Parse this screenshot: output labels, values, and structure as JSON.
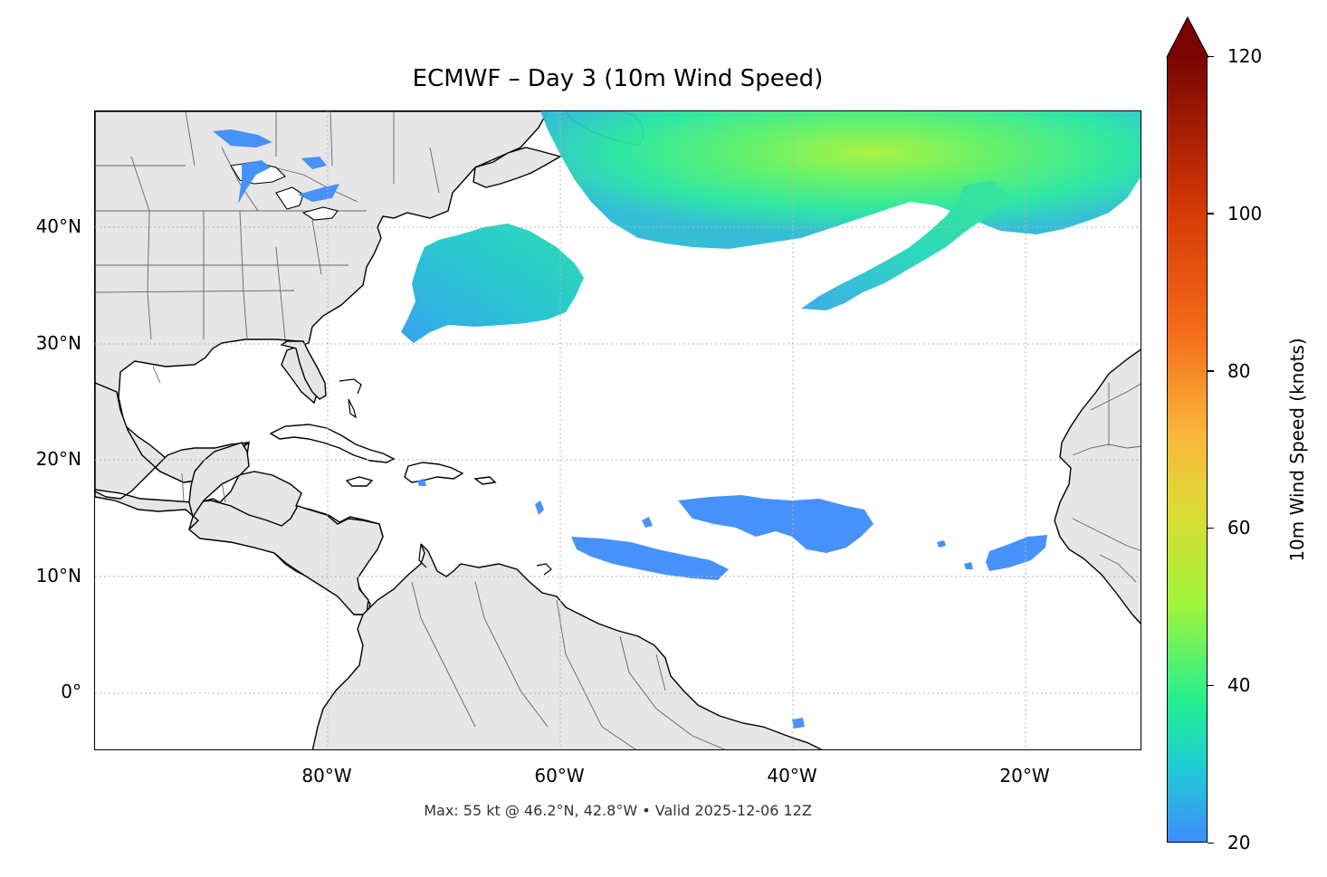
{
  "title": "ECMWF – Day 3 (10m Wind Speed)",
  "footer": "Max: 55 kt @ 46.2°N, 42.8°W • Valid 2025-12-06 12Z",
  "map": {
    "lon_range": [
      -100,
      -10
    ],
    "lat_range": [
      -5,
      50
    ],
    "land_color": "#e6e6e6",
    "coast_color": "#000000",
    "border_color": "#666666",
    "grid": true,
    "lat_ticks": [
      {
        "value": 40,
        "label": "40°N"
      },
      {
        "value": 30,
        "label": "30°N"
      },
      {
        "value": 20,
        "label": "20°N"
      },
      {
        "value": 10,
        "label": "10°N"
      },
      {
        "value": 0,
        "label": "0°"
      }
    ],
    "lon_ticks": [
      {
        "value": -80,
        "label": "80°W"
      },
      {
        "value": -60,
        "label": "60°W"
      },
      {
        "value": -40,
        "label": "40°W"
      },
      {
        "value": -20,
        "label": "20°W"
      }
    ],
    "wind_regions": [
      {
        "name": "north-atlantic-low",
        "speed": 45
      },
      {
        "name": "mid-atlantic-jet",
        "speed": 32
      },
      {
        "name": "off-carolina-system",
        "speed": 30
      },
      {
        "name": "trade-winds-west",
        "speed": 23
      },
      {
        "name": "trade-winds-central",
        "speed": 22
      },
      {
        "name": "trade-winds-east",
        "speed": 22
      },
      {
        "name": "great-lakes",
        "speed": 22
      }
    ]
  },
  "colorbar": {
    "label": "10m Wind Speed (knots)",
    "min": 20,
    "max": 120,
    "extend": "max",
    "ticks": [
      {
        "value": 20,
        "label": "20"
      },
      {
        "value": 40,
        "label": "40"
      },
      {
        "value": 60,
        "label": "60"
      },
      {
        "value": 80,
        "label": "80"
      },
      {
        "value": 100,
        "label": "100"
      },
      {
        "value": 120,
        "label": "120"
      }
    ],
    "stops": [
      {
        "v": 20,
        "c": "#3e8dfa"
      },
      {
        "v": 30,
        "c": "#1ecfd1"
      },
      {
        "v": 38,
        "c": "#24ef8f"
      },
      {
        "v": 50,
        "c": "#9ef53a"
      },
      {
        "v": 62,
        "c": "#dcdc36"
      },
      {
        "v": 72,
        "c": "#fbb53a"
      },
      {
        "v": 85,
        "c": "#f46c1a"
      },
      {
        "v": 100,
        "c": "#d63a06"
      },
      {
        "v": 120,
        "c": "#7a0403"
      }
    ]
  }
}
